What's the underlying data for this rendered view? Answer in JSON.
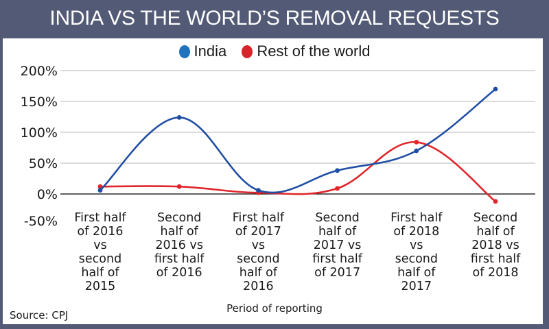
{
  "colors": {
    "frame": "#525a76",
    "india": "#1f4ea3",
    "rest": "#e0262b",
    "grid": "#cfcfcf",
    "axis": "#000000"
  },
  "chart_data": {
    "type": "line",
    "title": "INDIA VS THE WORLD’S REMOVAL REQUESTS",
    "xlabel": "Period of reporting",
    "ylabel": "",
    "source": "Source: CPJ",
    "legend_position": "top-center",
    "grid": true,
    "ylim": [
      -50,
      200
    ],
    "yticks": [
      200,
      150,
      100,
      50,
      0,
      -50
    ],
    "ytick_labels": [
      "200%",
      "150%",
      "100%",
      "50%",
      "0%",
      "-50%"
    ],
    "categories": [
      "First half of 2016 vs second half of 2015",
      "Second half of 2016 vs first half of 2016",
      "First half of 2017 vs second half of 2016",
      "Second half of 2017 vs first half of 2017",
      "First half of 2018 vs second half of 2017",
      "Second half of 2018 vs first half of 2018"
    ],
    "category_lines": [
      [
        "First half",
        "of 2016",
        "vs",
        "second",
        "half of",
        "2015"
      ],
      [
        "Second",
        "half of",
        "2016 vs",
        "first half",
        "of 2016"
      ],
      [
        "First half",
        "of 2017",
        "vs",
        "second",
        "half of",
        "2016"
      ],
      [
        "Second",
        "half of",
        "2017 vs",
        "first half",
        "of 2017"
      ],
      [
        "First half",
        "of 2018",
        "vs",
        "second",
        "half of",
        "2017"
      ],
      [
        "Second",
        "half of",
        "2018 vs",
        "first half",
        "of 2018"
      ]
    ],
    "series": [
      {
        "name": "India",
        "values": [
          6,
          124,
          6,
          38,
          70,
          170
        ]
      },
      {
        "name": "Rest of the world",
        "values": [
          12,
          12,
          2,
          9,
          84,
          -12
        ]
      }
    ]
  }
}
